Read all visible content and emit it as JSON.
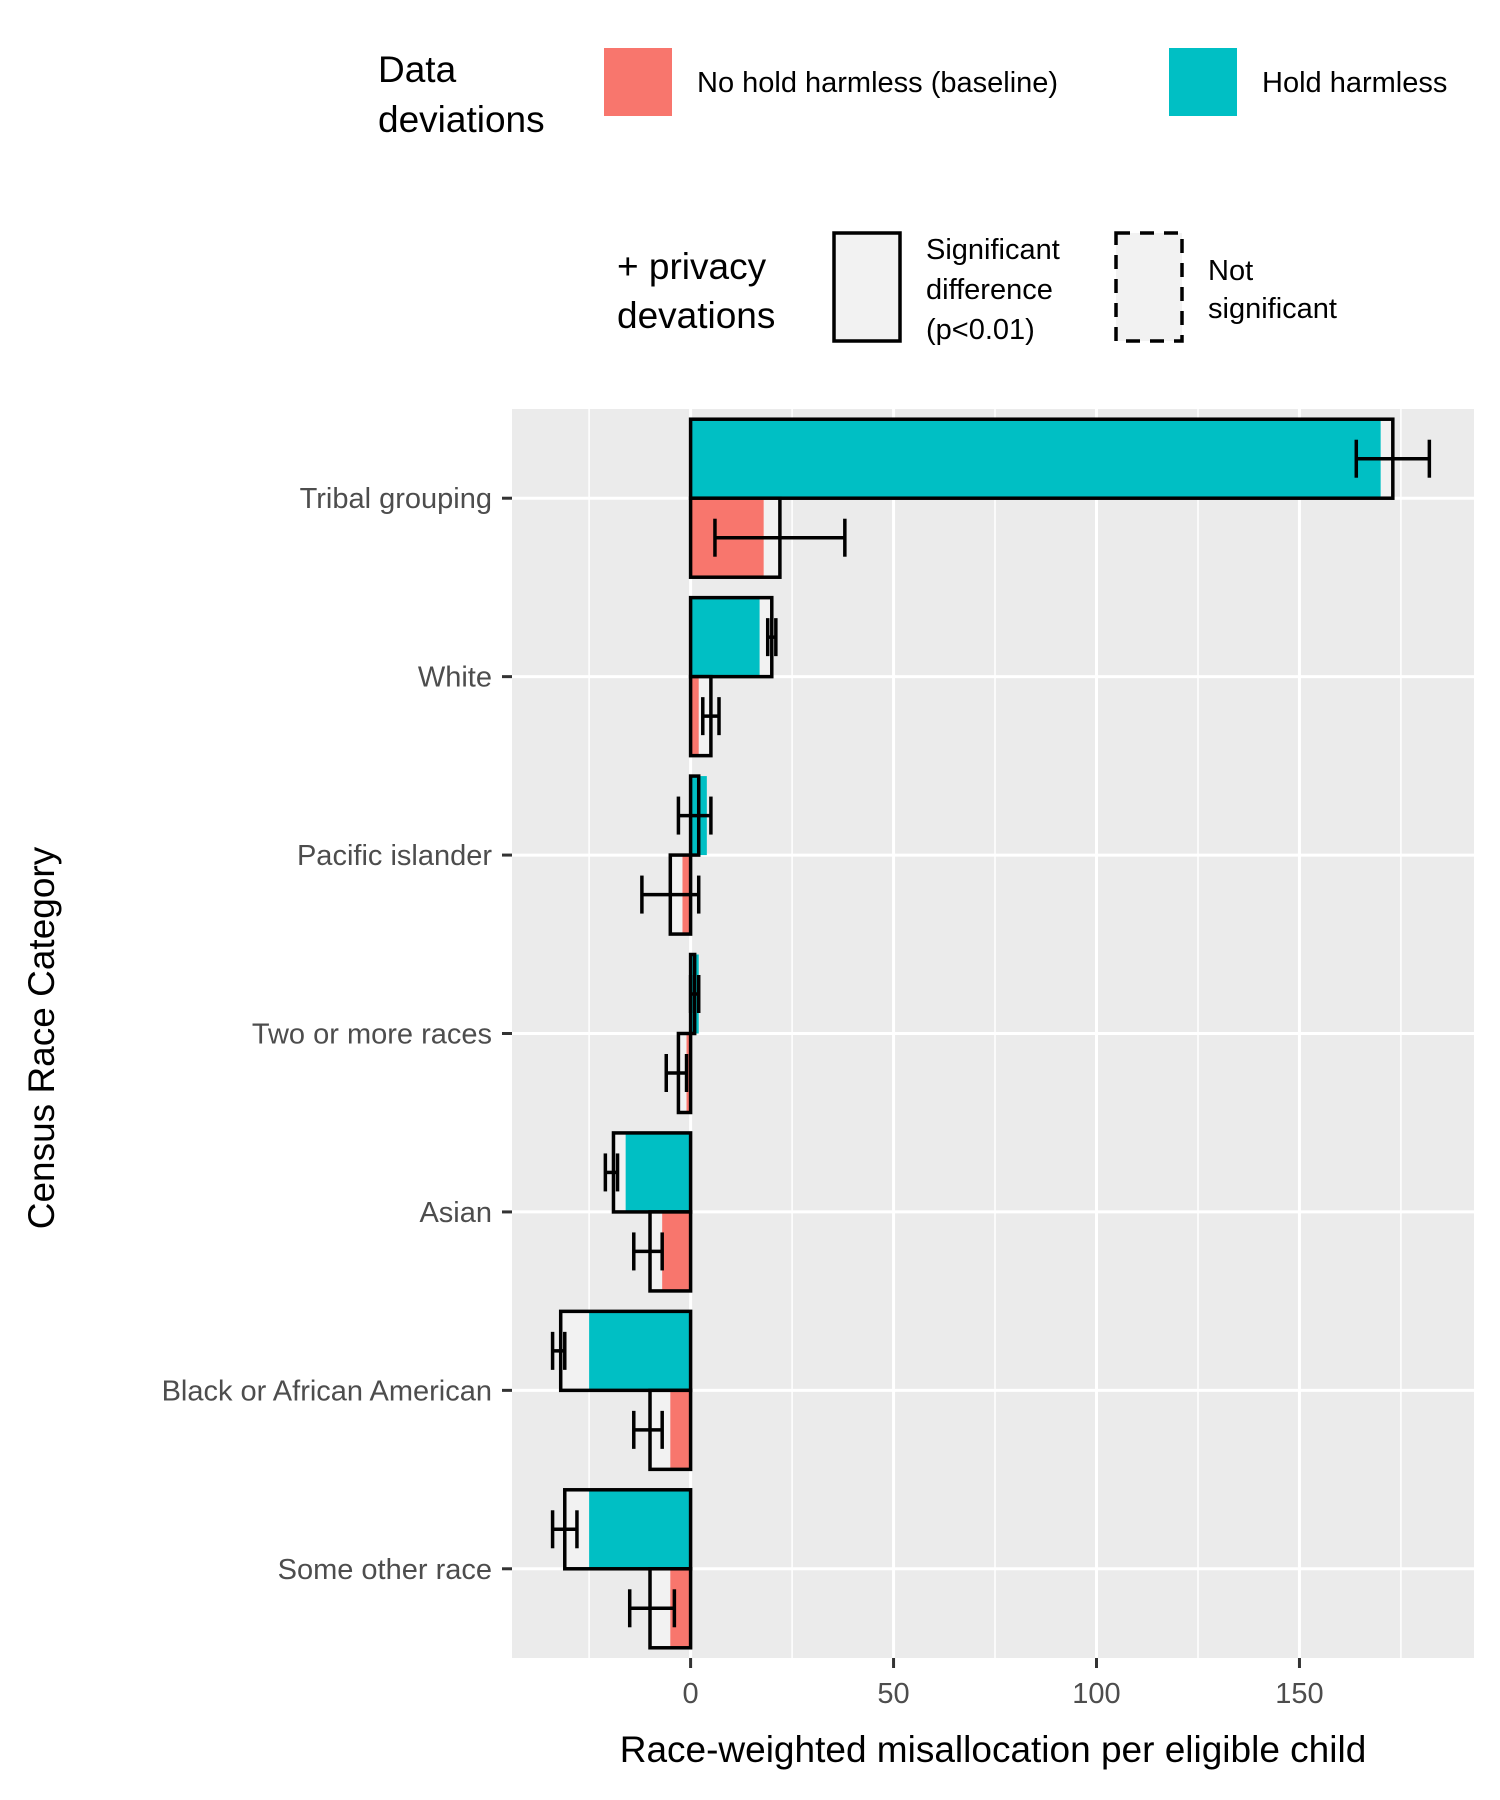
{
  "legend": {
    "fill_title_line1": "Data",
    "fill_title_line2": "deviations",
    "fill_items": [
      {
        "label": "No hold harmless (baseline)",
        "color": "#F8766D"
      },
      {
        "label": "Hold harmless",
        "color": "#00BFC4"
      }
    ],
    "line_title_line1": "+ privacy",
    "line_title_line2": "devations",
    "line_items": [
      {
        "lines": [
          "Significant",
          "difference",
          "(p<0.01)"
        ],
        "linetype": "solid"
      },
      {
        "lines": [
          "Not",
          "significant"
        ],
        "linetype": "dashed"
      }
    ]
  },
  "chart_data": {
    "type": "bar",
    "orientation": "horizontal",
    "title": "",
    "xlabel": "Race-weighted misallocation per eligible child",
    "ylabel": "Census Race Category",
    "xlim": [
      -44,
      193
    ],
    "xticks": [
      0,
      50,
      100,
      150
    ],
    "grid": true,
    "legend_position": "top",
    "categories": [
      "Tribal grouping",
      "White",
      "Pacific islander",
      "Two or more races",
      "Asian",
      "Black or African American",
      "Some other race"
    ],
    "series": [
      {
        "name": "Hold harmless",
        "color": "#00BFC4",
        "data_deviation": [
          170,
          17,
          4,
          2,
          -16,
          -25,
          -25
        ],
        "with_privacy": [
          173,
          20,
          2,
          1,
          -19,
          -32,
          -31
        ],
        "error_low": [
          164,
          19,
          -3,
          0,
          -21,
          -34,
          -34
        ],
        "error_high": [
          182,
          21,
          5,
          2,
          -18,
          -31,
          -28
        ],
        "significant": [
          true,
          true,
          true,
          true,
          true,
          true,
          true
        ]
      },
      {
        "name": "No hold harmless (baseline)",
        "color": "#F8766D",
        "data_deviation": [
          18,
          2,
          -2,
          -1,
          -7,
          -5,
          -5
        ],
        "with_privacy": [
          22,
          5,
          -5,
          -3,
          -10,
          -10,
          -10
        ],
        "error_low": [
          6,
          3,
          -12,
          -6,
          -14,
          -14,
          -15
        ],
        "error_high": [
          38,
          7,
          2,
          -1,
          -7,
          -7,
          -4
        ],
        "significant": [
          true,
          true,
          true,
          true,
          true,
          true,
          true
        ]
      }
    ]
  }
}
